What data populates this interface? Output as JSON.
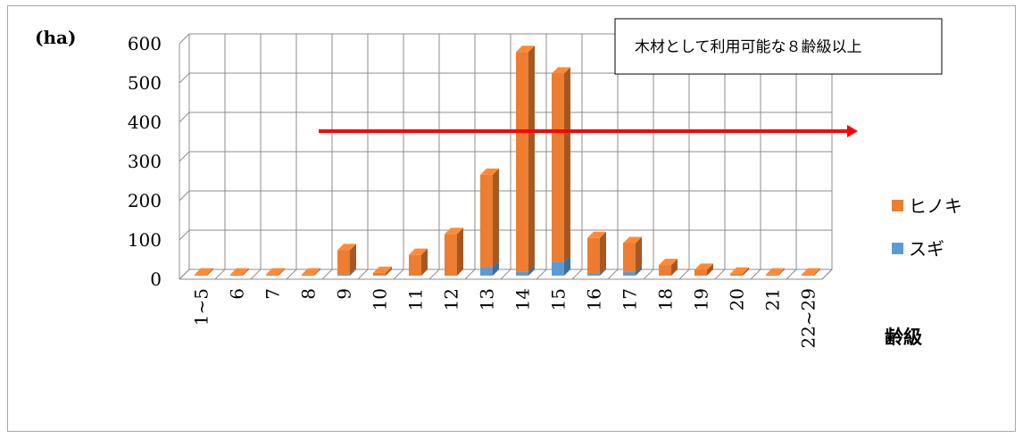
{
  "chart_data": {
    "type": "bar",
    "stacked": true,
    "categories": [
      "1~5",
      "6",
      "7",
      "8",
      "9",
      "10",
      "11",
      "12",
      "13",
      "14",
      "15",
      "16",
      "17",
      "18",
      "19",
      "20",
      "21",
      "22~29"
    ],
    "series": [
      {
        "name": "スギ",
        "color": "#5b9bd5",
        "values": [
          0,
          0,
          0,
          0,
          3,
          0,
          0,
          0,
          22,
          10,
          35,
          6,
          10,
          0,
          0,
          0,
          0,
          0
        ]
      },
      {
        "name": "ヒノキ",
        "color": "#ed7d31",
        "values": [
          3,
          3,
          3,
          3,
          62,
          7,
          53,
          106,
          235,
          560,
          480,
          90,
          73,
          27,
          15,
          5,
          3,
          3
        ]
      }
    ],
    "ylabel": "(ha)",
    "xlabel": "齢級",
    "ylim": [
      0,
      600
    ],
    "yticks": [
      0,
      100,
      200,
      300,
      400,
      500,
      600
    ],
    "grid": true,
    "legend_position": "right",
    "annotation": {
      "text": "木材として利用可能な８齢級以上",
      "arrow_color": "#ff0000"
    }
  }
}
